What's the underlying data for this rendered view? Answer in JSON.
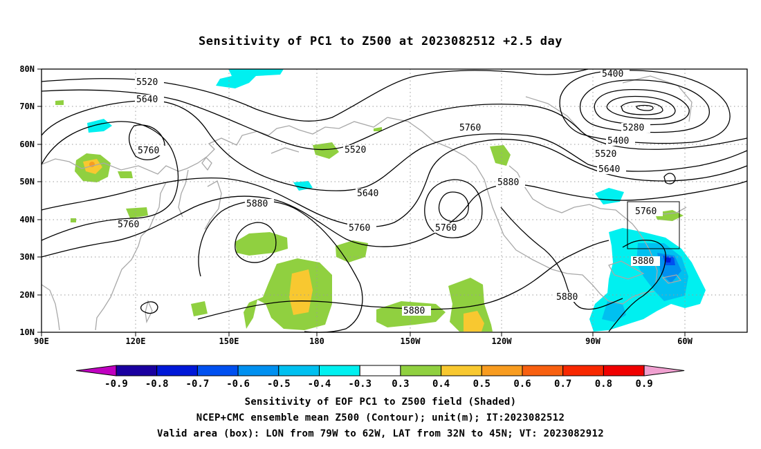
{
  "title": "Sensitivity of PC1 to Z500 at 2023082512 +2.5 day",
  "lat_labels": [
    "80N",
    "70N",
    "60N",
    "50N",
    "40N",
    "30N",
    "20N",
    "10N"
  ],
  "lon_labels": [
    "90E",
    "120E",
    "150E",
    "180",
    "150W",
    "120W",
    "90W",
    "60W"
  ],
  "contour_labels": [
    "5400",
    "5520",
    "5640",
    "5280",
    "5400",
    "5520",
    "5760",
    "5640",
    "5760",
    "5520",
    "5640",
    "5880",
    "5760",
    "5760",
    "5760",
    "5880",
    "5760",
    "5880",
    "5880",
    "5880"
  ],
  "colorbar": {
    "labels": [
      "-0.9",
      "-0.8",
      "-0.7",
      "-0.6",
      "-0.5",
      "-0.4",
      "-0.3",
      "0.3",
      "0.4",
      "0.5",
      "0.6",
      "0.7",
      "0.8",
      "0.9"
    ],
    "colors": [
      "#c000c0",
      "#1a00a0",
      "#0018d8",
      "#0050f0",
      "#0090f0",
      "#00c0f0",
      "#00f0f0",
      "#ffffff",
      "#90d040",
      "#f8c830",
      "#f89c20",
      "#f86010",
      "#f82800",
      "#f00000",
      "#f0a0d0"
    ]
  },
  "captions": [
    "Sensitivity of EOF PC1 to Z500 field (Shaded)",
    "NCEP+CMC ensemble mean Z500 (Contour); unit(m); IT:2023082512",
    "Valid area (box): LON from 79W to 62W, LAT from 32N to 45N; VT: 2023082912"
  ]
}
